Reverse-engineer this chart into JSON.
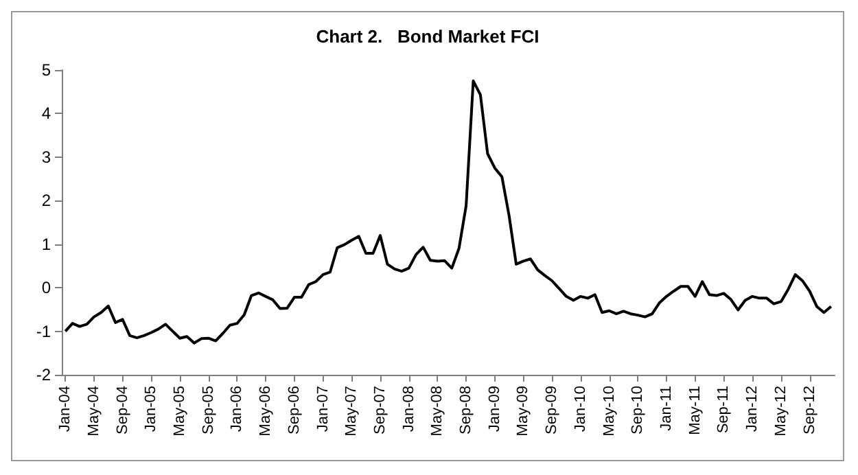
{
  "chart_data": {
    "type": "line",
    "title": "Chart 2.   Bond Market FCI",
    "categories": [
      "Jan-04",
      null,
      null,
      null,
      "May-04",
      null,
      null,
      null,
      "Sep-04",
      null,
      null,
      null,
      "Jan-05",
      null,
      null,
      null,
      "May-05",
      null,
      null,
      null,
      "Sep-05",
      null,
      null,
      null,
      "Jan-06",
      null,
      null,
      null,
      "May-06",
      null,
      null,
      null,
      "Sep-06",
      null,
      null,
      null,
      "Jan-07",
      null,
      null,
      null,
      "May-07",
      null,
      null,
      null,
      "Sep-07",
      null,
      null,
      null,
      "Jan-08",
      null,
      null,
      null,
      "May-08",
      null,
      null,
      null,
      "Sep-08",
      null,
      null,
      null,
      "Jan-09",
      null,
      null,
      null,
      "May-09",
      null,
      null,
      null,
      "Sep-09",
      null,
      null,
      null,
      "Jan-10",
      null,
      null,
      null,
      "May-10",
      null,
      null,
      null,
      "Sep-10",
      null,
      null,
      null,
      "Jan-11",
      null,
      null,
      null,
      "May-11",
      null,
      null,
      null,
      "Sep-11",
      null,
      null,
      null,
      "Jan-12",
      null,
      null,
      null,
      "May-12",
      null,
      null,
      null,
      "Sep-12",
      null,
      null,
      null
    ],
    "series": [
      {
        "color": "#000000",
        "values": [
          -1.0,
          -0.82,
          -0.89,
          -0.84,
          -0.67,
          -0.57,
          -0.42,
          -0.8,
          -0.73,
          -1.1,
          -1.15,
          -1.1,
          -1.03,
          -0.95,
          -0.84,
          -1.0,
          -1.16,
          -1.12,
          -1.27,
          -1.17,
          -1.16,
          -1.22,
          -1.05,
          -0.86,
          -0.82,
          -0.62,
          -0.18,
          -0.12,
          -0.2,
          -0.28,
          -0.48,
          -0.47,
          -0.22,
          -0.22,
          0.07,
          0.14,
          0.3,
          0.36,
          0.92,
          0.99,
          1.09,
          1.18,
          0.79,
          0.79,
          1.2,
          0.54,
          0.43,
          0.38,
          0.45,
          0.76,
          0.93,
          0.63,
          0.61,
          0.62,
          0.45,
          0.9,
          1.88,
          4.75,
          4.43,
          3.08,
          2.75,
          2.55,
          1.66,
          0.54,
          0.61,
          0.66,
          0.41,
          0.28,
          0.16,
          -0.02,
          -0.2,
          -0.29,
          -0.2,
          -0.24,
          -0.16,
          -0.57,
          -0.53,
          -0.6,
          -0.54,
          -0.6,
          -0.63,
          -0.67,
          -0.6,
          -0.35,
          -0.2,
          -0.08,
          0.03,
          0.03,
          -0.2,
          0.14,
          -0.16,
          -0.18,
          -0.13,
          -0.27,
          -0.51,
          -0.29,
          -0.2,
          -0.24,
          -0.24,
          -0.37,
          -0.32,
          -0.04,
          0.3,
          0.16,
          -0.08,
          -0.43,
          -0.57,
          -0.43
        ]
      }
    ],
    "ylim": [
      -2,
      5
    ],
    "yticks": [
      -2,
      -1,
      0,
      1,
      2,
      3,
      4,
      5
    ],
    "grid": false,
    "line_style": "solid"
  }
}
